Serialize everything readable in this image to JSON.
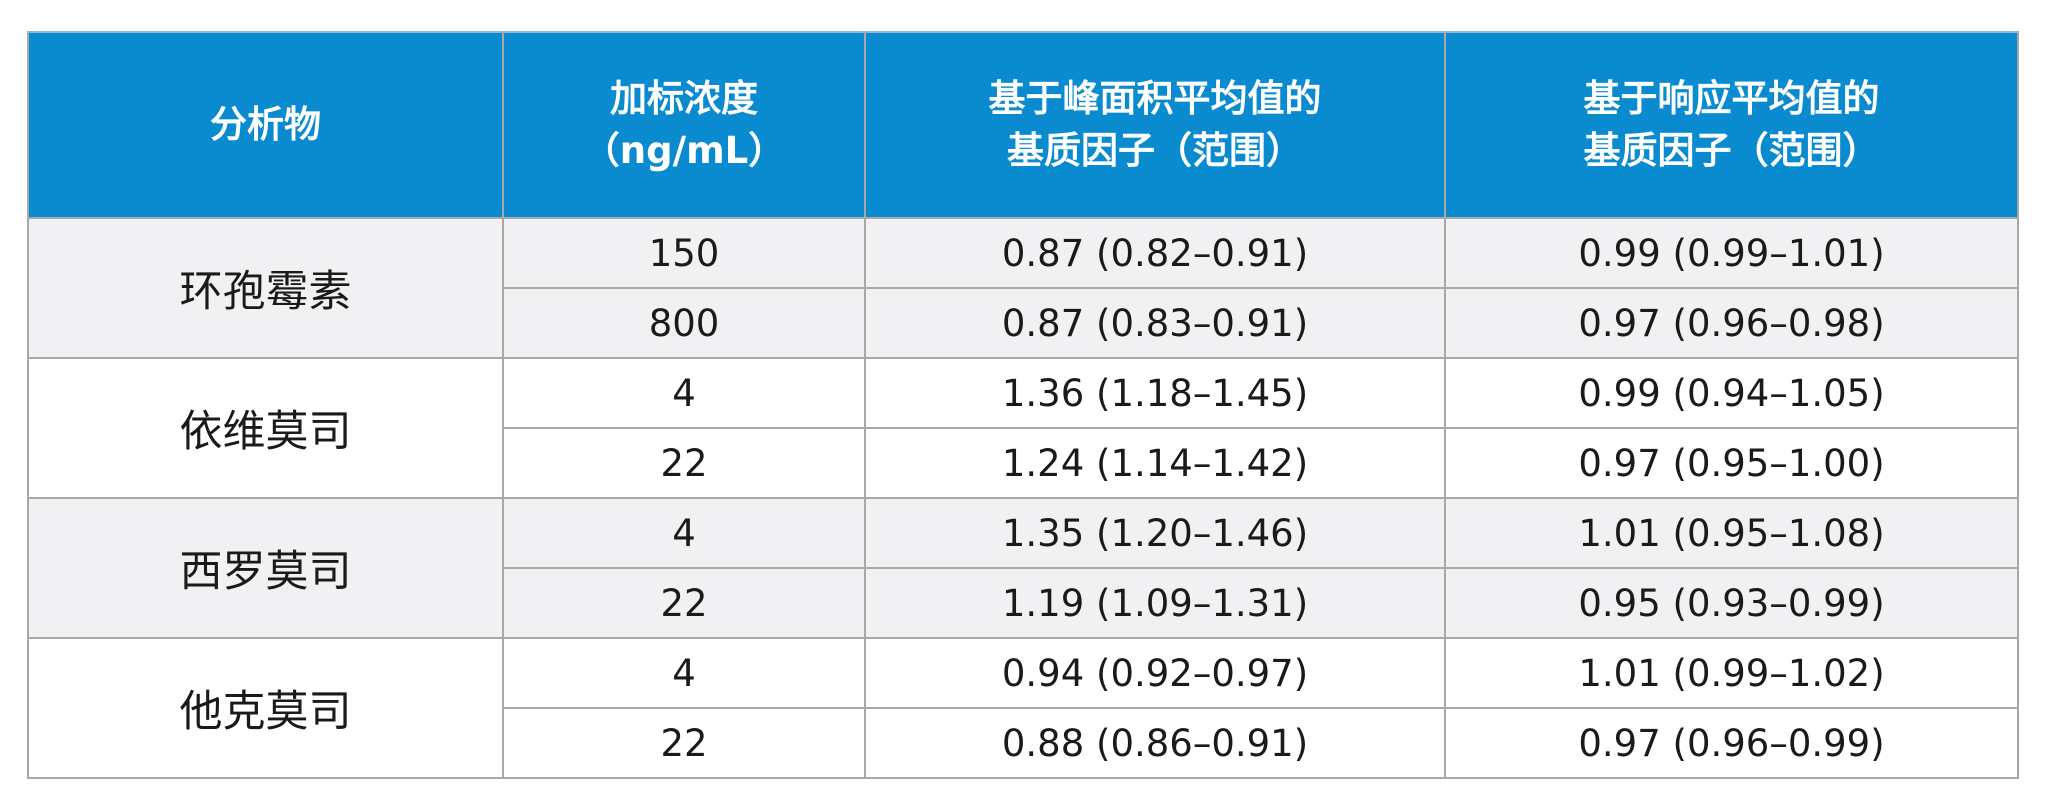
{
  "headers": {
    "analyte": [
      "分析物"
    ],
    "spike": [
      "加标浓度",
      "（ng/mL）"
    ],
    "peak_area": [
      "基于峰面积平均值的",
      "基质因子（范围）"
    ],
    "response": [
      "基于响应平均值的",
      "基质因子（范围）"
    ]
  },
  "groups": [
    {
      "analyte": "环孢霉素",
      "rows": [
        {
          "conc": "150",
          "peak_area": "0.87 (0.82–0.91)",
          "response": "0.99 (0.99–1.01)"
        },
        {
          "conc": "800",
          "peak_area": "0.87 (0.83–0.91)",
          "response": "0.97 (0.96–0.98)"
        }
      ]
    },
    {
      "analyte": "依维莫司",
      "rows": [
        {
          "conc": "4",
          "peak_area": "1.36 (1.18–1.45)",
          "response": "0.99 (0.94–1.05)"
        },
        {
          "conc": "22",
          "peak_area": "1.24 (1.14–1.42)",
          "response": "0.97 (0.95–1.00)"
        }
      ]
    },
    {
      "analyte": "西罗莫司",
      "rows": [
        {
          "conc": "4",
          "peak_area": "1.35 (1.20–1.46)",
          "response": "1.01 (0.95–1.08)"
        },
        {
          "conc": "22",
          "peak_area": "1.19 (1.09–1.31)",
          "response": "0.95 (0.93–0.99)"
        }
      ]
    },
    {
      "analyte": "他克莫司",
      "rows": [
        {
          "conc": "4",
          "peak_area": "0.94 (0.92–0.97)",
          "response": "1.01 (0.99–1.02)"
        },
        {
          "conc": "22",
          "peak_area": "0.88 (0.86–0.91)",
          "response": "0.97 (0.96–0.99)"
        }
      ]
    }
  ],
  "colors": {
    "header_bg": "#0a8bd0",
    "header_text": "#ffffff",
    "shaded_row": "#f1f1f3",
    "border": "#a8a8a8"
  }
}
